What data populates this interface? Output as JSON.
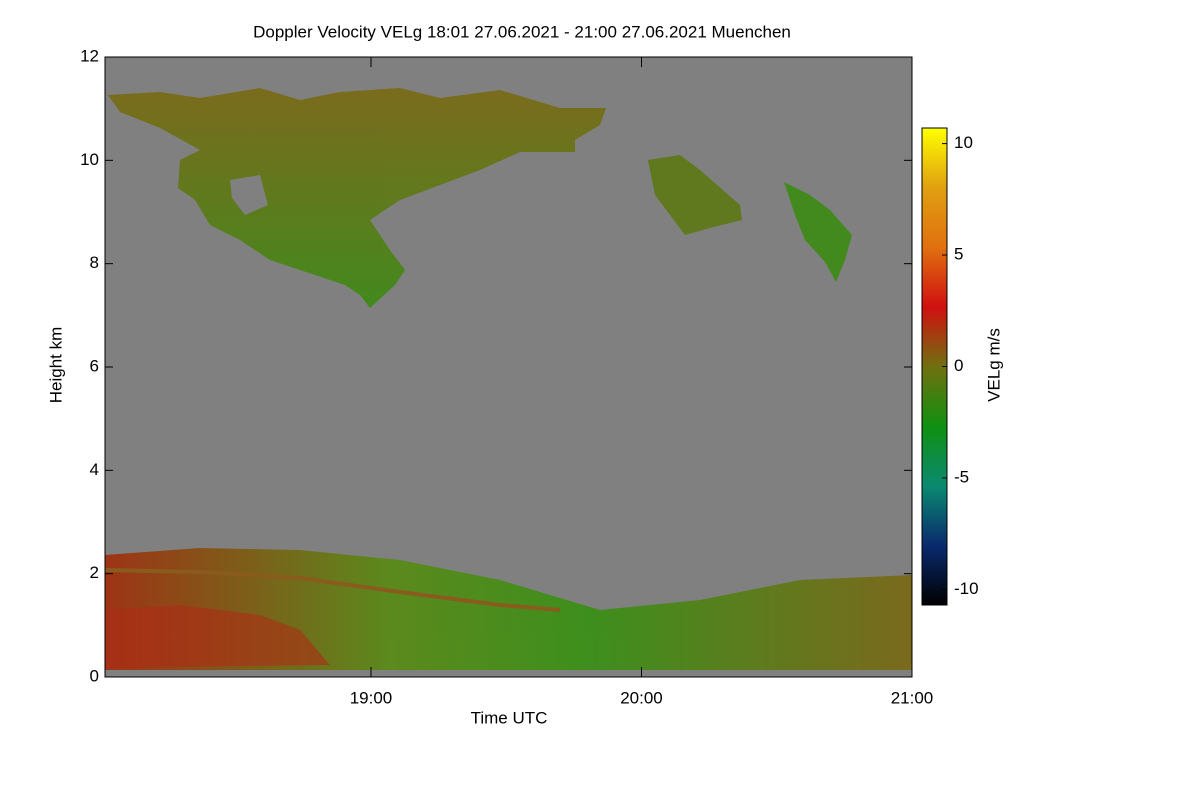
{
  "chart_data": {
    "type": "heatmap",
    "title": "Doppler Velocity VELg   18:01 27.06.2021 - 21:00 27.06.2021 Muenchen",
    "xlabel": "Time UTC",
    "ylabel": "Height km",
    "colorbar_label": "VELg m/s",
    "xlim": [
      18.0167,
      21
    ],
    "xticks": [
      {
        "value": 19,
        "label": "19:00"
      },
      {
        "value": 20,
        "label": "20:00"
      },
      {
        "value": 21,
        "label": "21:00"
      }
    ],
    "ylim": [
      0,
      12
    ],
    "yticks": [
      0,
      2,
      4,
      6,
      8,
      10,
      12
    ],
    "clim": [
      -10.7,
      10.7
    ],
    "cticks": [
      -10,
      -5,
      0,
      5,
      10
    ],
    "colormap": [
      "#000000",
      "#0a2a6e",
      "#0a8a70",
      "#109010",
      "#707010",
      "#d01010",
      "#e07010",
      "#e0a010",
      "#ffff00"
    ],
    "background": "#808080"
  }
}
